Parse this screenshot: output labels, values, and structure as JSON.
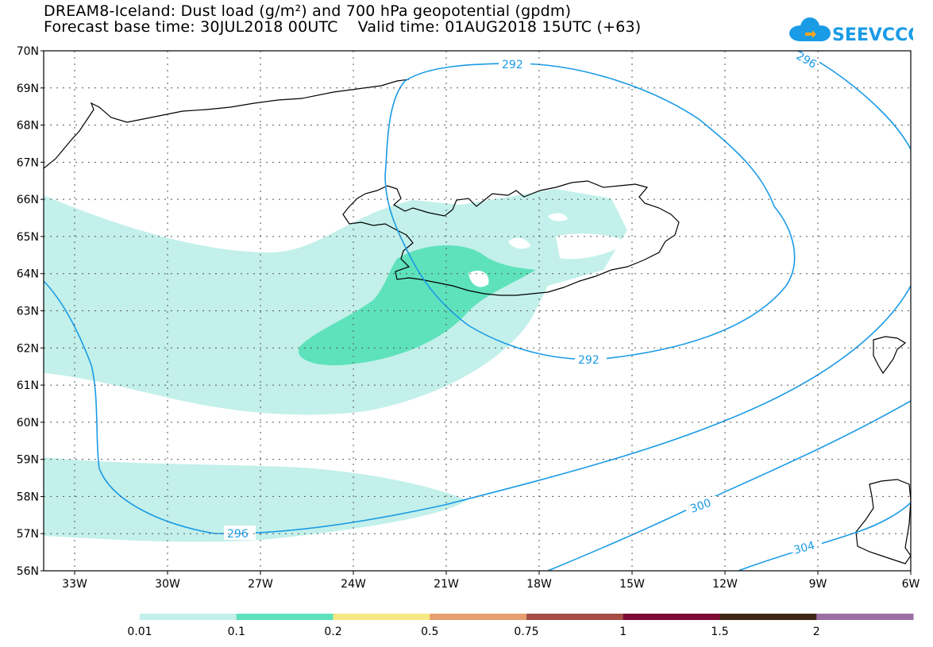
{
  "title": {
    "line1": "DREAM8-Iceland: Dust load (g/m²) and 700 hPa geopotential (gpdm)",
    "line2": "Forecast base time: 30JUL2018 00UTC    Valid time: 01AUG2018 15UTC (+63)"
  },
  "logo": {
    "text": "SEEVCCC",
    "color": "#1a9be6",
    "icon": "cloud-icon"
  },
  "map": {
    "lat_labels": [
      "70N",
      "69N",
      "68N",
      "67N",
      "66N",
      "65N",
      "64N",
      "63N",
      "62N",
      "61N",
      "60N",
      "59N",
      "58N",
      "57N",
      "56N"
    ],
    "lon_labels": [
      "33W",
      "30W",
      "27W",
      "24W",
      "21W",
      "18W",
      "15W",
      "12W",
      "9W",
      "6W"
    ],
    "contour_labels": [
      "292",
      "296",
      "292",
      "296",
      "300",
      "304"
    ],
    "contour_color": "#1a9be6",
    "coast_color": "#000000"
  },
  "colorbar": {
    "labels": [
      "0.01",
      "0.1",
      "0.2",
      "0.5",
      "0.75",
      "1",
      "1.5",
      "2"
    ],
    "colors": [
      "#c3f0ea",
      "#5ee2bc",
      "#f5e884",
      "#e69e6e",
      "#a64d46",
      "#7e0a35",
      "#3e2716",
      "#9a6fa4"
    ]
  }
}
